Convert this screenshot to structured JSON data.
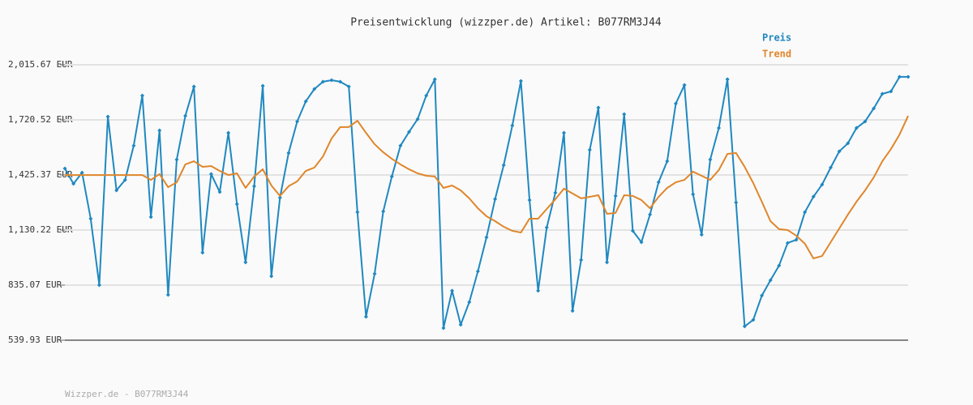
{
  "chart_data": {
    "type": "line",
    "title": "Preisentwicklung (wizzper.de) Artikel: B077RM3J44",
    "footer": "Wizzper.de - B077RM3J44",
    "legend": "top-right",
    "grid": true,
    "ylim": [
      539.93,
      2015.67
    ],
    "yticks": [
      {
        "value": 539.93,
        "label": "539.93 EUR"
      },
      {
        "value": 835.07,
        "label": "835.07 EUR"
      },
      {
        "value": 1130.22,
        "label": "1,130.22 EUR"
      },
      {
        "value": 1425.37,
        "label": "1,425.37 EUR"
      },
      {
        "value": 1720.52,
        "label": "1,720.52 EUR"
      },
      {
        "value": 2015.67,
        "label": "2,015.67 EUR"
      }
    ],
    "series": [
      {
        "name": "Preis",
        "color": "#1f88c0",
        "markers": true,
        "values": [
          1460,
          1378,
          1438,
          1191,
          835,
          1738,
          1343,
          1399,
          1582,
          1851,
          1200,
          1664,
          783,
          1508,
          1742,
          1899,
          1009,
          1430,
          1334,
          1651,
          1269,
          957,
          1365,
          1903,
          883,
          1304,
          1543,
          1712,
          1820,
          1886,
          1925,
          1933,
          1925,
          1899,
          1226,
          666,
          896,
          1230,
          1417,
          1582,
          1656,
          1725,
          1851,
          1938,
          605,
          805,
          623,
          744,
          909,
          1091,
          1296,
          1478,
          1690,
          1929,
          1291,
          805,
          1144,
          1330,
          1651,
          697,
          970,
          1560,
          1786,
          957,
          1313,
          1751,
          1126,
          1065,
          1213,
          1387,
          1499,
          1808,
          1907,
          1322,
          1105,
          1508,
          1677,
          1938,
          1278,
          614,
          649,
          779,
          861,
          940,
          1061,
          1078,
          1226,
          1309,
          1374,
          1465,
          1552,
          1595,
          1677,
          1712,
          1782,
          1860,
          1873,
          1951,
          1951
        ]
      },
      {
        "name": "Trend",
        "color": "#e0862a",
        "markers": false,
        "values": [
          1425,
          1425,
          1425,
          1425,
          1425,
          1425,
          1425,
          1425,
          1425,
          1425,
          1399,
          1430,
          1360,
          1386,
          1482,
          1499,
          1469,
          1473,
          1447,
          1425,
          1434,
          1356,
          1417,
          1456,
          1369,
          1313,
          1365,
          1391,
          1447,
          1465,
          1525,
          1621,
          1682,
          1682,
          1716,
          1651,
          1590,
          1547,
          1512,
          1482,
          1456,
          1434,
          1421,
          1417,
          1356,
          1369,
          1343,
          1300,
          1247,
          1204,
          1178,
          1148,
          1126,
          1117,
          1191,
          1191,
          1243,
          1295,
          1352,
          1326,
          1300,
          1308,
          1317,
          1217,
          1222,
          1317,
          1313,
          1291,
          1247,
          1308,
          1356,
          1386,
          1399,
          1443,
          1421,
          1399,
          1452,
          1538,
          1543,
          1469,
          1382,
          1282,
          1178,
          1135,
          1130,
          1100,
          1057,
          978,
          991,
          1065,
          1139,
          1213,
          1282,
          1343,
          1412,
          1499,
          1564,
          1642,
          1742
        ]
      }
    ]
  }
}
